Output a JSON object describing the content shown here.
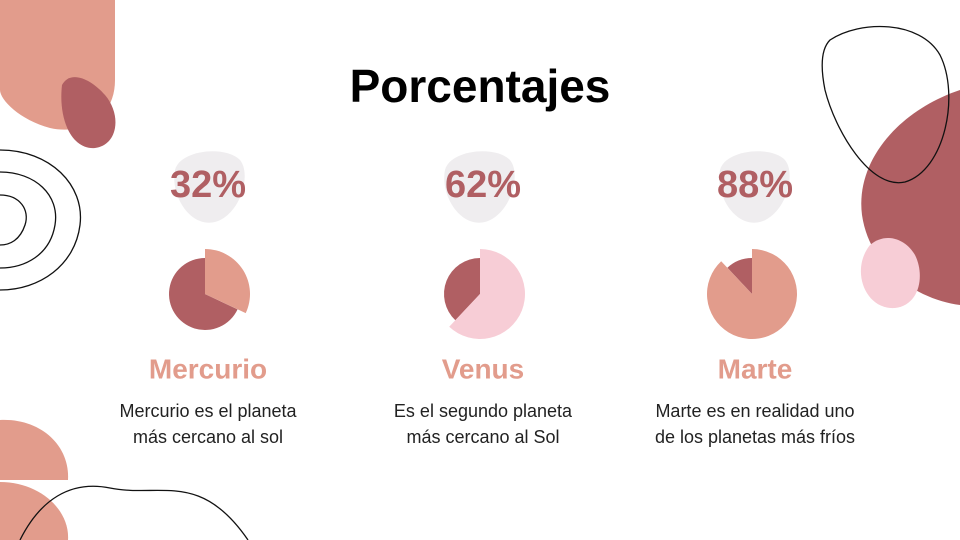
{
  "title": "Porcentajes",
  "chart_data": [
    {
      "type": "pie",
      "title": "Mercurio",
      "values": [
        32
      ],
      "value_labels": [
        "32%"
      ],
      "color": "#e29c8c",
      "annotations": [
        "Mercurio es el planeta",
        "más cercano al sol"
      ]
    },
    {
      "type": "pie",
      "title": "Venus",
      "values": [
        62
      ],
      "value_labels": [
        "62%"
      ],
      "color": "#f7cdd6",
      "annotations": [
        "Es el segundo planeta",
        "más cercano al Sol"
      ]
    },
    {
      "type": "pie",
      "title": "Marte",
      "values": [
        88
      ],
      "value_labels": [
        "88%"
      ],
      "color": "#e29c8c",
      "annotations": [
        "Marte es en realidad uno",
        "de los planetas más fríos"
      ]
    }
  ]
}
